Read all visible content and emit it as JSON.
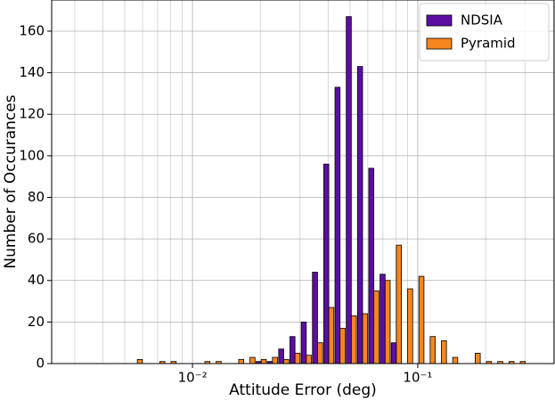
{
  "chart_data": {
    "type": "histogram",
    "xlabel": "Attitude Error (deg)",
    "ylabel": "Number of Occurances",
    "xscale": "log",
    "bins": [
      0.00302,
      0.003388,
      0.003802,
      0.004266,
      0.004786,
      0.00537,
      0.006026,
      0.006761,
      0.007586,
      0.008511,
      0.00955,
      0.010715,
      0.012023,
      0.01349,
      0.015136,
      0.016982,
      0.019055,
      0.02138,
      0.023988,
      0.026915,
      0.0302,
      0.033884,
      0.038019,
      0.042658,
      0.047863,
      0.053703,
      0.060256,
      0.067608,
      0.075858,
      0.085114,
      0.095499,
      0.10715,
      0.12023,
      0.1349,
      0.15136,
      0.16982,
      0.19055,
      0.2138,
      0.23988,
      0.26915,
      0.302,
      0.33884,
      0.38019
    ],
    "series": [
      {
        "name": "NDSIA",
        "color": "#5c0ea3",
        "values": [
          0,
          0,
          0,
          0,
          0,
          0,
          0,
          0,
          0,
          0,
          0,
          0,
          0,
          0,
          0,
          0,
          1,
          1,
          7,
          13,
          20,
          44,
          96,
          133,
          167,
          143,
          94,
          43,
          10,
          0,
          0,
          0,
          0,
          0,
          0,
          0,
          0,
          0,
          0,
          0,
          0,
          0
        ]
      },
      {
        "name": "Pyramid",
        "color": "#f7861e",
        "values": [
          0,
          0,
          0,
          0,
          0,
          2,
          0,
          1,
          1,
          0,
          0,
          1,
          1,
          0,
          2,
          3,
          2,
          3,
          2,
          5,
          4,
          10,
          27,
          17,
          23,
          24,
          35,
          40,
          57,
          36,
          42,
          13,
          11,
          3,
          0,
          5,
          1,
          1,
          1,
          1,
          0,
          0
        ]
      }
    ],
    "xlim": [
      0.00237,
      0.403
    ],
    "ylim": [
      0,
      175
    ],
    "xticks": [
      {
        "value": 0.01,
        "label": "10⁻²"
      },
      {
        "value": 0.1,
        "label": "10⁻¹"
      }
    ],
    "yticks": [
      0,
      20,
      40,
      60,
      80,
      100,
      120,
      140,
      160
    ],
    "grid": true,
    "minor_grid": true,
    "legend": "upper right"
  }
}
